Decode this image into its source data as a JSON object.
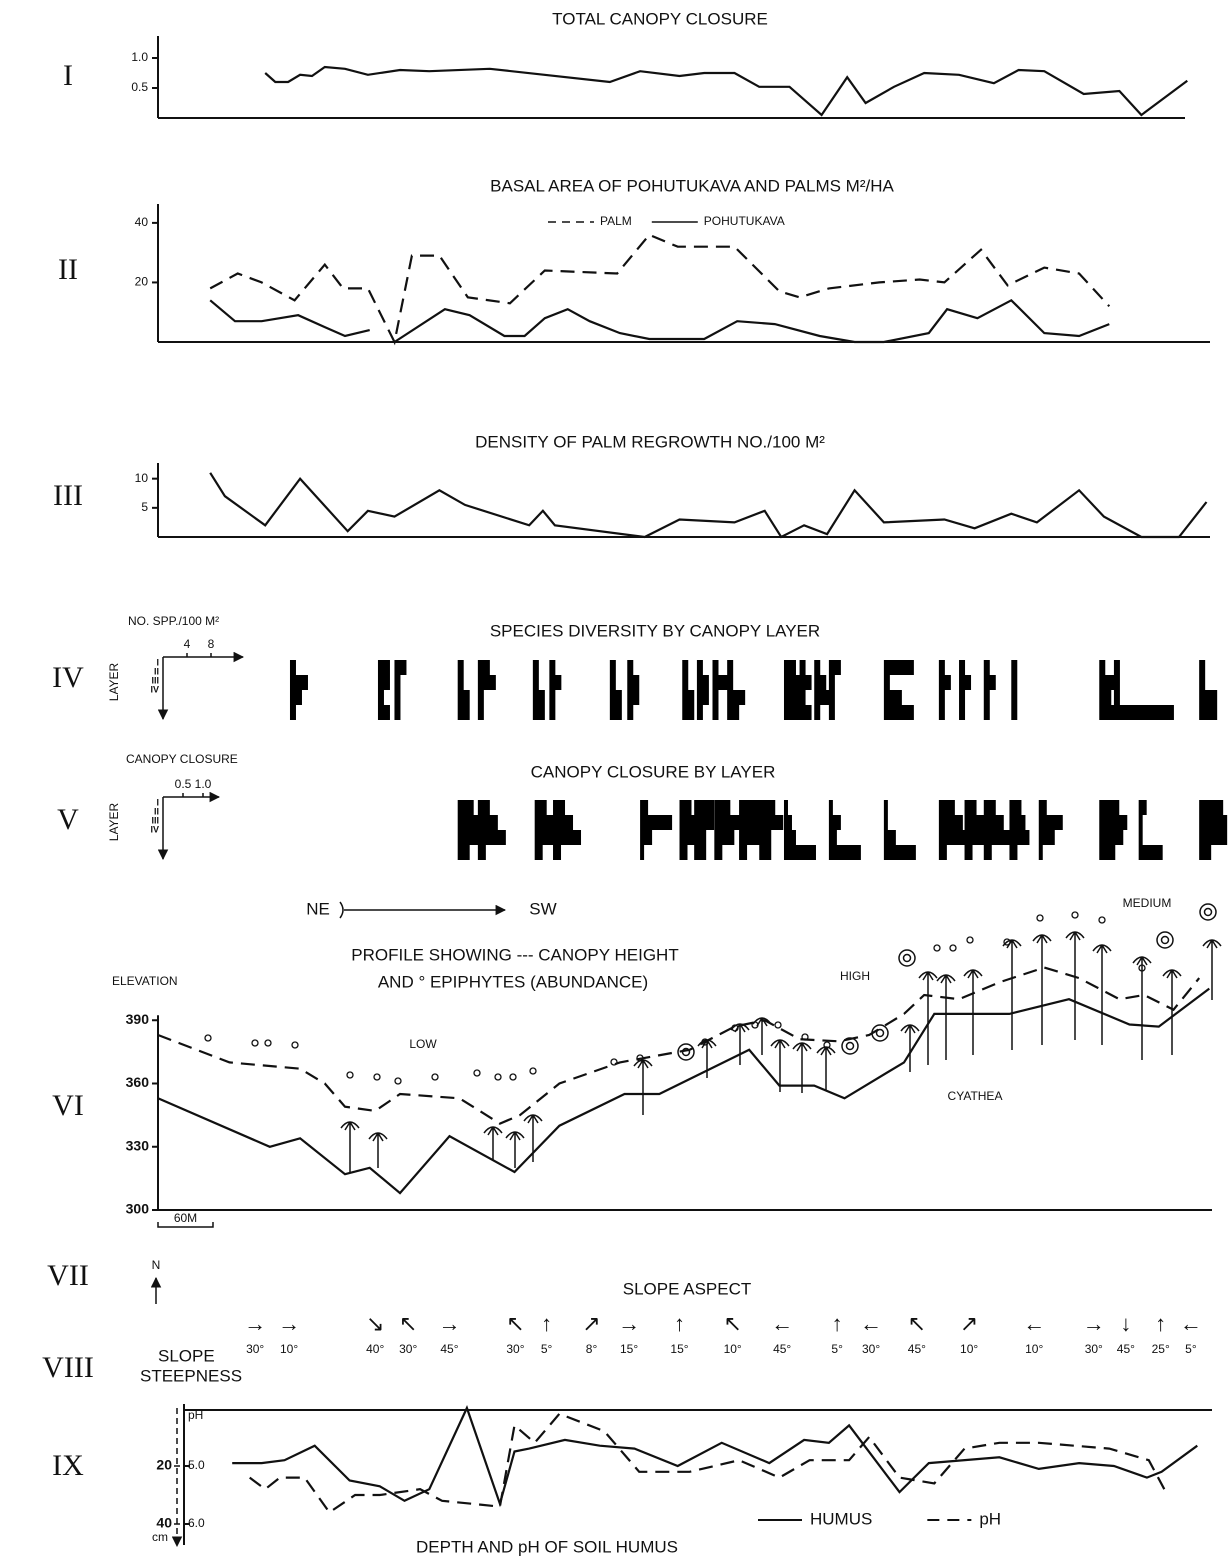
{
  "chart_data": [
    {
      "type": "line",
      "label": "I",
      "title": "TOTAL CANOPY CLOSURE",
      "x": [
        117,
        128,
        142,
        155,
        168,
        182,
        204,
        229,
        264,
        296,
        362,
        493,
        526,
        569,
        596,
        629,
        656,
        689,
        724,
        752,
        772,
        803,
        836,
        874,
        912,
        939,
        967,
        1010,
        1049,
        1073,
        1123
      ],
      "values": [
        0.75,
        0.6,
        0.6,
        0.72,
        0.7,
        0.85,
        0.82,
        0.72,
        0.8,
        0.78,
        0.82,
        0.6,
        0.78,
        0.7,
        0.75,
        0.75,
        0.52,
        0.52,
        0.05,
        0.68,
        0.25,
        0.52,
        0.75,
        0.72,
        0.58,
        0.8,
        0.78,
        0.4,
        0.45,
        0.05,
        0.62
      ],
      "xlim": [
        0,
        1150
      ],
      "ylim": [
        0,
        1.3
      ],
      "yticks": [
        0.5,
        {
          "value": 1.0,
          "label": "1.0"
        }
      ],
      "color": "#111111"
    },
    {
      "type": "line",
      "label": "II",
      "title": "BASAL AREA OF POHUTUKAVA AND PALMS M²/HA",
      "legend": "top",
      "series": [
        {
          "name": "PALM",
          "style": "dashed",
          "color": "#111111",
          "x": [
            57,
            87,
            113,
            149,
            182,
            202,
            229,
            258,
            277,
            307,
            338,
            384,
            422,
            501,
            536,
            567,
            596,
            629,
            678,
            700,
            732,
            787,
            831,
            858,
            898,
            927,
            967,
            1005,
            1038
          ],
          "values": [
            18,
            23,
            20,
            14,
            26,
            18,
            18,
            0,
            29,
            29,
            15,
            13,
            24,
            23,
            36,
            32,
            32,
            32,
            17,
            15,
            18,
            20,
            21,
            20,
            31,
            19,
            25,
            23,
            12
          ]
        },
        {
          "name": "POHUTUKAVA",
          "style": "solid",
          "color": "#111111",
          "x": [
            57,
            84,
            113,
            153,
            182,
            204,
            231,
            245,
            258,
            313,
            340,
            378,
            400,
            422,
            447,
            471,
            504,
            536,
            596,
            632,
            673,
            722,
            760,
            792,
            841,
            861,
            894,
            931,
            967,
            1005,
            1038
          ],
          "values": [
            14,
            7,
            7,
            9,
            5,
            2,
            4,
            null,
            0,
            11,
            9,
            2,
            2,
            8,
            11,
            7,
            3,
            1,
            1,
            7,
            6,
            2,
            0,
            0,
            3,
            11,
            8,
            14,
            3,
            2,
            6
          ]
        }
      ],
      "xlim": [
        0,
        1150
      ],
      "ylim": [
        0,
        45
      ],
      "yticks": [
        20,
        40
      ]
    },
    {
      "type": "line",
      "label": "III",
      "title": "DENSITY OF PALM REGROWTH NO./100 M²",
      "x": [
        57,
        73,
        117,
        155,
        207,
        229,
        258,
        307,
        335,
        405,
        420,
        433,
        531,
        569,
        629,
        662,
        680,
        705,
        730,
        760,
        792,
        858,
        891,
        931,
        959,
        1005,
        1032,
        1073,
        1114,
        1144
      ],
      "values": [
        11,
        7,
        2,
        10,
        1,
        4.5,
        3.5,
        8,
        5.5,
        2,
        4.5,
        2,
        0,
        3,
        2.5,
        4.5,
        0,
        2,
        0.5,
        8,
        2.5,
        3,
        1.5,
        4,
        2.5,
        8,
        3.5,
        0,
        0,
        6
      ],
      "xlim": [
        0,
        1150
      ],
      "ylim": [
        0,
        12
      ],
      "yticks": [
        5,
        10
      ],
      "color": "#111111"
    },
    {
      "type": "layer-bars",
      "label": "IV",
      "title": "SPECIES DIVERSITY BY CANOPY LAYER",
      "unit_label": "NO. SPP./100 M²",
      "axis_label": "LAYER",
      "layers": [
        "I",
        "II",
        "III",
        "IV"
      ],
      "bar_lim": [
        0,
        12
      ],
      "bar_ticks": [
        4,
        8
      ],
      "color": "#000000",
      "x": [
        144,
        240,
        258,
        327,
        349,
        409,
        427,
        493,
        512,
        572,
        588,
        605,
        621,
        683,
        700,
        716,
        732,
        792,
        852,
        874,
        901,
        931,
        1027,
        1043,
        1136
      ],
      "values": [
        [
          1,
          3,
          2,
          1
        ],
        [
          2,
          2,
          1,
          2
        ],
        [
          2,
          1,
          1,
          1
        ],
        [
          1,
          1,
          2,
          2
        ],
        [
          2,
          3,
          1,
          1
        ],
        [
          1,
          1,
          2,
          2
        ],
        [
          1,
          2,
          1,
          1
        ],
        [
          1,
          1,
          2,
          2
        ],
        [
          1,
          2,
          2,
          1
        ],
        [
          1,
          1,
          2,
          2
        ],
        [
          1,
          2,
          2,
          1
        ],
        [
          1,
          3,
          1,
          1
        ],
        [
          1,
          1,
          3,
          2
        ],
        [
          2,
          3,
          3,
          4
        ],
        [
          1,
          2,
          1,
          2
        ],
        [
          1,
          2,
          3,
          1
        ],
        [
          2,
          1,
          1,
          1
        ],
        [
          5,
          1,
          3,
          5
        ],
        [
          1,
          2,
          1,
          1
        ],
        [
          1,
          2,
          1,
          1
        ],
        [
          1,
          2,
          1,
          1
        ],
        [
          1,
          1,
          1,
          1
        ],
        [
          1,
          3,
          2,
          3
        ],
        [
          1,
          1,
          1,
          10
        ],
        [
          1,
          1,
          3,
          3
        ]
      ],
      "xlim": [
        0,
        1150
      ]
    },
    {
      "type": "layer-bars",
      "label": "V",
      "title": "CANOPY CLOSURE BY LAYER",
      "unit_label": "CANOPY CLOSURE",
      "axis_label": "LAYER",
      "layers": [
        "I",
        "II",
        "III",
        "IV"
      ],
      "bar_lim": [
        0,
        1.2
      ],
      "bar_ticks": [
        0.5,
        {
          "value": 1.0,
          "label": "1.0"
        }
      ],
      "color": "#000000",
      "x": [
        327,
        349,
        411,
        431,
        526,
        569,
        585,
        607,
        634,
        656,
        683,
        732,
        792,
        852,
        880,
        901,
        929,
        961,
        1027,
        1070,
        1136
      ],
      "values": [
        [
          0.4,
          0.6,
          0.8,
          0.3
        ],
        [
          0.3,
          0.5,
          0.7,
          0.2
        ],
        [
          0.3,
          0.6,
          0.6,
          0.2
        ],
        [
          0.3,
          0.5,
          0.7,
          0.2
        ],
        [
          0.2,
          0.8,
          0.3,
          0.1
        ],
        [
          0.3,
          0.6,
          0.4,
          0.2
        ],
        [
          0.5,
          0.5,
          0.3,
          0.3
        ],
        [
          0.4,
          0.7,
          0.5,
          0.2
        ],
        [
          0.6,
          0.7,
          0.6,
          0.2
        ],
        [
          0.4,
          0.6,
          0.3,
          0.3
        ],
        [
          0.1,
          0.2,
          0.3,
          0.8
        ],
        [
          0.1,
          0.3,
          0.2,
          0.8
        ],
        [
          0.1,
          0.1,
          0.3,
          0.8
        ],
        [
          0.4,
          0.6,
          0.7,
          0.2
        ],
        [
          0.3,
          0.5,
          0.6,
          0.2
        ],
        [
          0.3,
          0.5,
          0.7,
          0.2
        ],
        [
          0.3,
          0.4,
          0.5,
          0.2
        ],
        [
          0.2,
          0.6,
          0.4,
          0.1
        ],
        [
          0.5,
          0.7,
          0.6,
          0.4
        ],
        [
          0.2,
          0.1,
          0.1,
          0.6
        ],
        [
          0.6,
          0.7,
          0.7,
          0.3
        ]
      ],
      "xlim": [
        0,
        1150
      ]
    },
    {
      "type": "profile",
      "label": "VI",
      "title": "PROFILE SHOWING --- CANOPY HEIGHT",
      "subtitle": "AND ° EPIPHYTES (ABUNDANCE)",
      "y_label": "ELEVATION",
      "annotations": [
        "NE",
        "SW",
        "LOW",
        "HIGH",
        "MEDIUM",
        "CYATHEA"
      ],
      "scale_bar": {
        "value": 60,
        "label": "60M"
      },
      "series": [
        {
          "style": "solid",
          "color": "#111111",
          "x": [
            0,
            122,
            155,
            204,
            231,
            264,
            318,
            389,
            438,
            509,
            547,
            645,
            678,
            716,
            749,
            814,
            847,
            929,
            994,
            1060,
            1092,
            1147
          ],
          "values": [
            353,
            330,
            334,
            317,
            320,
            308,
            335,
            318,
            340,
            355,
            355,
            376,
            359,
            359,
            353,
            370,
            393,
            393,
            400,
            388,
            387,
            405
          ]
        },
        {
          "style": "dashed",
          "color": "#111111",
          "x": [
            0,
            78,
            155,
            182,
            204,
            237,
            264,
            329,
            373,
            395,
            438,
            504,
            580,
            629,
            662,
            700,
            743,
            776,
            814,
            836,
            874,
            918,
            967,
            1005,
            1049,
            1076,
            1108,
            1136
          ],
          "values": [
            383,
            370,
            367,
            360,
            349,
            347,
            355,
            353,
            341,
            345,
            360,
            370,
            376,
            387,
            390,
            381,
            380,
            383,
            393,
            402,
            400,
            408,
            415,
            410,
            400,
            402,
            395,
            410
          ]
        }
      ],
      "xlim": [
        0,
        1150
      ],
      "ylim": [
        300,
        420
      ],
      "yticks": [
        300,
        330,
        360,
        390
      ]
    },
    {
      "type": "slope",
      "labels": [
        "VII",
        "VIII"
      ],
      "north": "N",
      "title": "SLOPE ASPECT",
      "axis_label": [
        "SLOPE",
        "STEEPNESS"
      ],
      "x": [
        106,
        143,
        237,
        273,
        318,
        390,
        424,
        473,
        514,
        569,
        627,
        681,
        741,
        778,
        828,
        885,
        956,
        1021,
        1056,
        1094,
        1127
      ],
      "aspect": [
        "→",
        "→",
        "↘",
        "↖",
        "→",
        "↖",
        "↑",
        "↗",
        "→",
        "↑",
        "↖",
        "←",
        "↑",
        "←",
        "↖",
        "↗",
        "←",
        "→",
        "↓",
        "↑",
        "←"
      ],
      "values": [
        30,
        10,
        40,
        30,
        45,
        30,
        5,
        8,
        15,
        15,
        10,
        45,
        5,
        30,
        45,
        10,
        10,
        30,
        45,
        25,
        5
      ],
      "value_labels": [
        "30°",
        "10°",
        "40°",
        "30°",
        "45°",
        "30°",
        "5°",
        "8°",
        "15°",
        "15°",
        "10°",
        "45°",
        "5°",
        "30°",
        "45°",
        "10°",
        "10°",
        "30°",
        "45°",
        "25°",
        "5°"
      ],
      "xlim": [
        0,
        1150
      ]
    },
    {
      "type": "soil",
      "label": "IX",
      "title": "DEPTH AND pH OF SOIL HUMUS",
      "legend": "bottom",
      "ylim": [
        0,
        40
      ],
      "yticks": [
        20,
        40
      ],
      "y_unit": "cm",
      "inverted": true,
      "y2label": "pH",
      "y2lim": [
        4,
        6
      ],
      "y2ticks": [
        {
          "value": 5,
          "label": "5.0"
        },
        {
          "value": 6,
          "label": "6.0"
        }
      ],
      "series": [
        {
          "name": "HUMUS",
          "style": "solid",
          "color": "#111111",
          "x": [
            81,
            113,
            138,
            171,
            209,
            242,
            269,
            296,
            337,
            373,
            389,
            405,
            444,
            482,
            520,
            567,
            615,
            667,
            705,
            732,
            754,
            809,
            841,
            918,
            961,
            1005,
            1043,
            1079,
            1095,
            1134
          ],
          "values": [
            19,
            19,
            18,
            13,
            25,
            27,
            32,
            28,
            0,
            33,
            15,
            14,
            11,
            13,
            14,
            20,
            12,
            19,
            11,
            12,
            6,
            29,
            19,
            17,
            21,
            19,
            20,
            24,
            22,
            13
          ]
        },
        {
          "name": "pH",
          "style": "dashed",
          "axis": "y2",
          "color": "#111111",
          "x": [
            100,
            117,
            133,
            160,
            187,
            215,
            242,
            286,
            310,
            373,
            389,
            411,
            438,
            487,
            525,
            580,
            634,
            678,
            711,
            754,
            776,
            809,
            847,
            880,
            918,
            961,
            1038,
            1081,
            1098
          ],
          "values": [
            5.2,
            5.4,
            5.2,
            5.2,
            5.8,
            5.5,
            5.5,
            5.4,
            5.6,
            5.7,
            4.3,
            4.6,
            4.1,
            4.4,
            5.1,
            5.1,
            4.9,
            5.2,
            4.9,
            4.9,
            4.5,
            5.2,
            5.3,
            4.7,
            4.6,
            4.6,
            4.7,
            4.9,
            5.4
          ]
        }
      ],
      "xlim": [
        0,
        1150
      ]
    }
  ]
}
